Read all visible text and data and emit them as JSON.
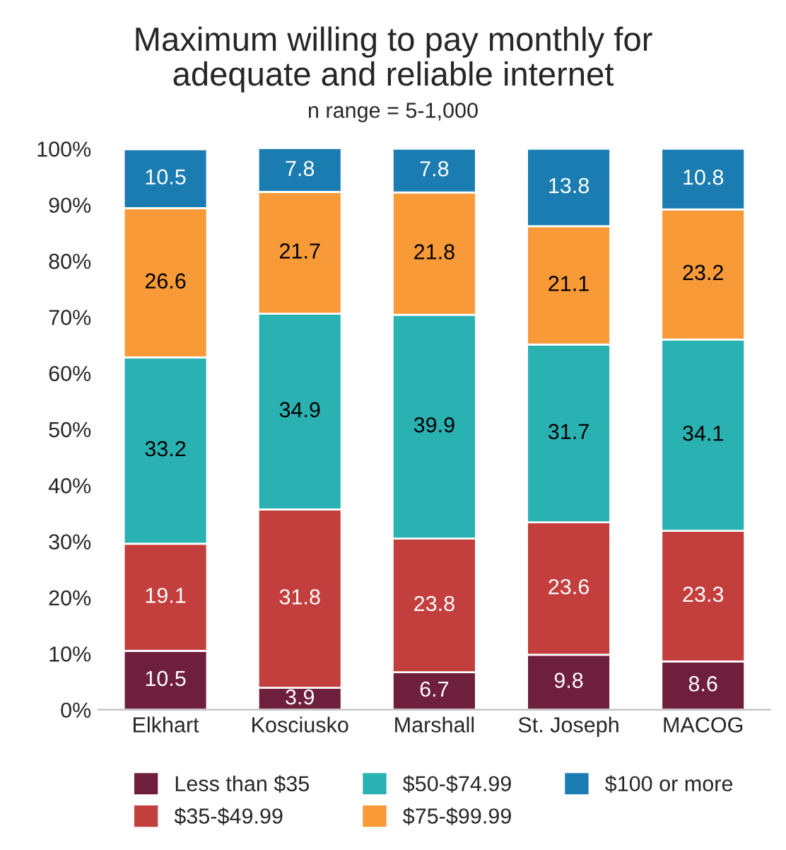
{
  "chart_data": {
    "type": "bar",
    "stacked": true,
    "title": "Maximum willing to pay monthly for\nadequate and reliable internet",
    "subtitle": "n range = 5-1,000",
    "categories": [
      "Elkhart",
      "Kosciusko",
      "Marshall",
      "St. Joseph",
      "MACOG"
    ],
    "series": [
      {
        "name": "Less than $35",
        "color": "#6e1f3c",
        "values": [
          10.5,
          3.9,
          6.7,
          9.8,
          8.6
        ]
      },
      {
        "name": "$35-$49.99",
        "color": "#c23f3d",
        "values": [
          19.1,
          31.8,
          23.8,
          23.6,
          23.3
        ]
      },
      {
        "name": "$50-$74.99",
        "color": "#2ab2b2",
        "values": [
          33.2,
          34.9,
          39.9,
          31.7,
          34.1
        ]
      },
      {
        "name": "$75-$99.99",
        "color": "#f89a38",
        "values": [
          26.6,
          21.7,
          21.8,
          21.1,
          23.2
        ]
      },
      {
        "name": "$100 or more",
        "color": "#1a7cb0",
        "values": [
          10.5,
          7.8,
          7.8,
          13.8,
          10.8
        ]
      }
    ],
    "ylim": [
      0,
      100
    ],
    "yticks": [
      {
        "value": 0,
        "label": "0%"
      },
      {
        "value": 10,
        "label": "10%"
      },
      {
        "value": 20,
        "label": "20%"
      },
      {
        "value": 30,
        "label": "30%"
      },
      {
        "value": 40,
        "label": "40%"
      },
      {
        "value": 50,
        "label": "50%"
      },
      {
        "value": 60,
        "label": "60%"
      },
      {
        "value": 70,
        "label": "70%"
      },
      {
        "value": 80,
        "label": "80%"
      },
      {
        "value": 90,
        "label": "90%"
      },
      {
        "value": 100,
        "label": "100%"
      }
    ],
    "data_labels": true,
    "legend": "bottom",
    "grid": false
  }
}
